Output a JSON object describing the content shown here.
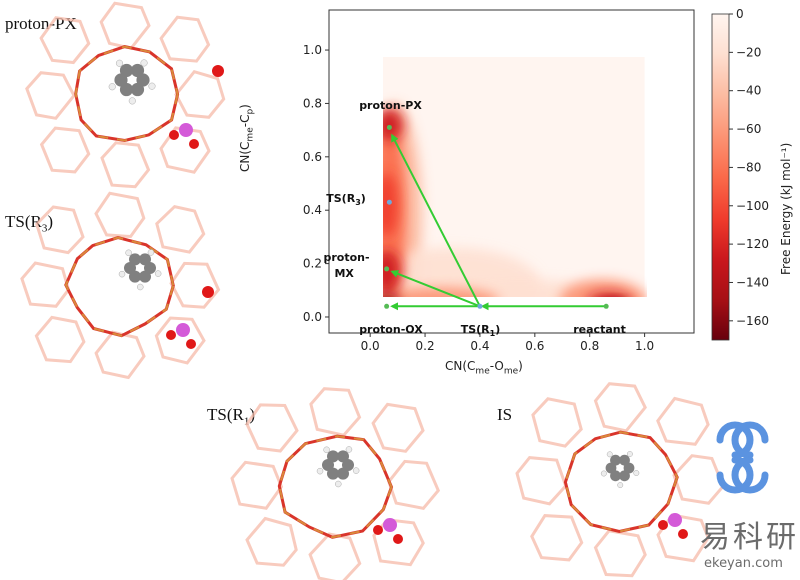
{
  "panels": {
    "top_left": {
      "label": "proton-PX"
    },
    "mid_left": {
      "label_main": "TS(R",
      "label_sub": "3",
      "label_end": ")"
    },
    "bottom_mid": {
      "label_main": "TS(R",
      "label_sub": "1",
      "label_end": ")"
    },
    "bottom_right": {
      "label": "IS"
    }
  },
  "watermark": {
    "cn": "易科研",
    "url": "ekeyan.com"
  },
  "chart_data": {
    "type": "heatmap",
    "xlabel": "CN(C_me-O_me)",
    "ylabel": "CN(C_me-C_p)",
    "xlim": [
      -0.15,
      1.18
    ],
    "ylim": [
      -0.06,
      1.15
    ],
    "xticks": [
      "0.0",
      "0.2",
      "0.4",
      "0.6",
      "0.8",
      "1.0"
    ],
    "yticks": [
      "0.0",
      "0.2",
      "0.4",
      "0.6",
      "0.8",
      "1.0"
    ],
    "colorbar": {
      "label": "Free Energy (kJ mol⁻¹)",
      "ticks": [
        "0",
        "−20",
        "−40",
        "−60",
        "−80",
        "−100",
        "−120",
        "−140",
        "−160"
      ],
      "range": [
        -170,
        0
      ],
      "colors": [
        "#fff5f0",
        "#fee0d2",
        "#fcbba1",
        "#fc9272",
        "#fb6a4a",
        "#ef3b2c",
        "#cb181d",
        "#a50f15",
        "#67000d"
      ]
    },
    "basins": [
      {
        "name": "proton-PX",
        "x": 0.07,
        "y": 0.71,
        "depth": -150
      },
      {
        "name": "proton-MX",
        "x": 0.06,
        "y": 0.18,
        "depth": -155
      },
      {
        "name": "proton-OX",
        "x": 0.06,
        "y": 0.04,
        "depth": -165
      },
      {
        "name": "reactant",
        "x": 0.86,
        "y": 0.04,
        "depth": -160
      }
    ],
    "points": [
      {
        "label": "proton-PX",
        "x": 0.07,
        "y": 0.71
      },
      {
        "label": "TS(R3)",
        "x": 0.07,
        "y": 0.43
      },
      {
        "label": "proton-MX",
        "x": 0.06,
        "y": 0.18
      },
      {
        "label": "proton-OX",
        "x": 0.06,
        "y": 0.04
      },
      {
        "label": "TS(R1)",
        "x": 0.4,
        "y": 0.04
      },
      {
        "label": "reactant",
        "x": 0.86,
        "y": 0.04
      }
    ],
    "arrows": [
      {
        "from": [
          0.86,
          0.04
        ],
        "to": [
          0.41,
          0.04
        ]
      },
      {
        "from": [
          0.4,
          0.04
        ],
        "to": [
          0.08,
          0.04
        ]
      },
      {
        "from": [
          0.4,
          0.04
        ],
        "to": [
          0.08,
          0.17
        ]
      },
      {
        "from": [
          0.4,
          0.04
        ],
        "to": [
          0.08,
          0.68
        ]
      }
    ],
    "annotations": [
      {
        "text": "proton-PX",
        "x": -0.04,
        "y": 0.78
      },
      {
        "text_main": "TS(R",
        "text_sub": "3",
        "text_end": ")",
        "x": -0.16,
        "y": 0.43
      },
      {
        "text": "proton-",
        "x": -0.17,
        "y": 0.21
      },
      {
        "text": "MX",
        "x": -0.13,
        "y": 0.15
      },
      {
        "text": "proton-OX",
        "x": -0.04,
        "y": -0.06
      },
      {
        "text_main": "TS(R",
        "text_sub": "1",
        "text_end": ")",
        "x": 0.33,
        "y": -0.06
      },
      {
        "text": "reactant",
        "x": 0.74,
        "y": -0.06
      }
    ]
  }
}
